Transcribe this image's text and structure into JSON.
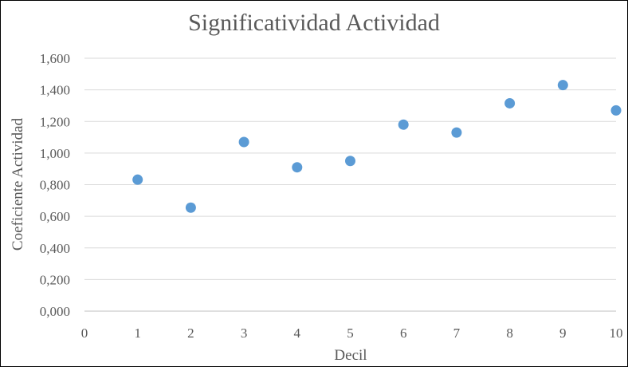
{
  "chart_data": {
    "type": "scatter",
    "title": "Significatividad Actividad",
    "xlabel": "Decil",
    "ylabel": "Coeficiente Actividad",
    "xlim": [
      0,
      10
    ],
    "ylim": [
      0,
      1.6
    ],
    "x_ticks": [
      "0",
      "1",
      "2",
      "3",
      "4",
      "5",
      "6",
      "7",
      "8",
      "9",
      "10"
    ],
    "y_ticks": [
      "0,000",
      "0,200",
      "0,400",
      "0,600",
      "0,800",
      "1,000",
      "1,200",
      "1,400",
      "1,600"
    ],
    "grid": "horizontal",
    "legend": "none",
    "marker_color": "#5b9bd5",
    "series": [
      {
        "x": [
          1,
          2,
          3,
          4,
          5,
          6,
          7,
          8,
          9,
          10
        ],
        "y": [
          0.832,
          0.655,
          1.07,
          0.91,
          0.95,
          1.18,
          1.13,
          1.315,
          1.43,
          1.27
        ]
      }
    ]
  }
}
